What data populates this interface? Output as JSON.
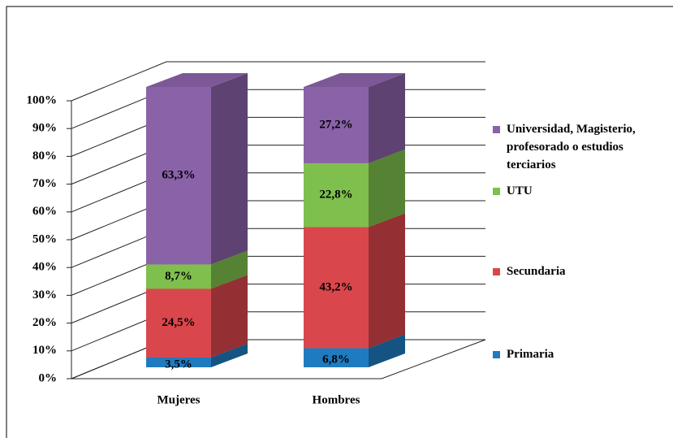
{
  "chart_data": {
    "type": "bar3d_stacked",
    "categories": [
      "Mujeres",
      "Hombres"
    ],
    "series": [
      {
        "name": "Primaria",
        "color": "#1f7bbf",
        "values": [
          3.5,
          6.8
        ],
        "value_labels": [
          "3,5%",
          "6,8%"
        ]
      },
      {
        "name": "Secundaria",
        "color": "#d9474c",
        "values": [
          24.5,
          43.2
        ],
        "value_labels": [
          "24,5%",
          "43,2%"
        ]
      },
      {
        "name": "UTU",
        "color": "#7fbf4d",
        "values": [
          8.7,
          22.8
        ],
        "value_labels": [
          "8,7%",
          "22,8%"
        ]
      },
      {
        "name": "Universidad, Magisterio, profesorado o estudios terciarios",
        "color": "#8a62a8",
        "values": [
          63.3,
          27.2
        ],
        "value_labels": [
          "63,3%",
          "27,2%"
        ]
      }
    ],
    "ylim": [
      0,
      100
    ],
    "yticks": [
      {
        "value": 0,
        "label": "0%"
      },
      {
        "value": 10,
        "label": "10%"
      },
      {
        "value": 20,
        "label": "20%"
      },
      {
        "value": 30,
        "label": "30%"
      },
      {
        "value": 40,
        "label": "40%"
      },
      {
        "value": 50,
        "label": "50%"
      },
      {
        "value": 60,
        "label": "60%"
      },
      {
        "value": 70,
        "label": "70%"
      },
      {
        "value": 80,
        "label": "80%"
      },
      {
        "value": 90,
        "label": "90%"
      },
      {
        "value": 100,
        "label": "100%"
      }
    ],
    "grid": true,
    "legend": "right"
  }
}
